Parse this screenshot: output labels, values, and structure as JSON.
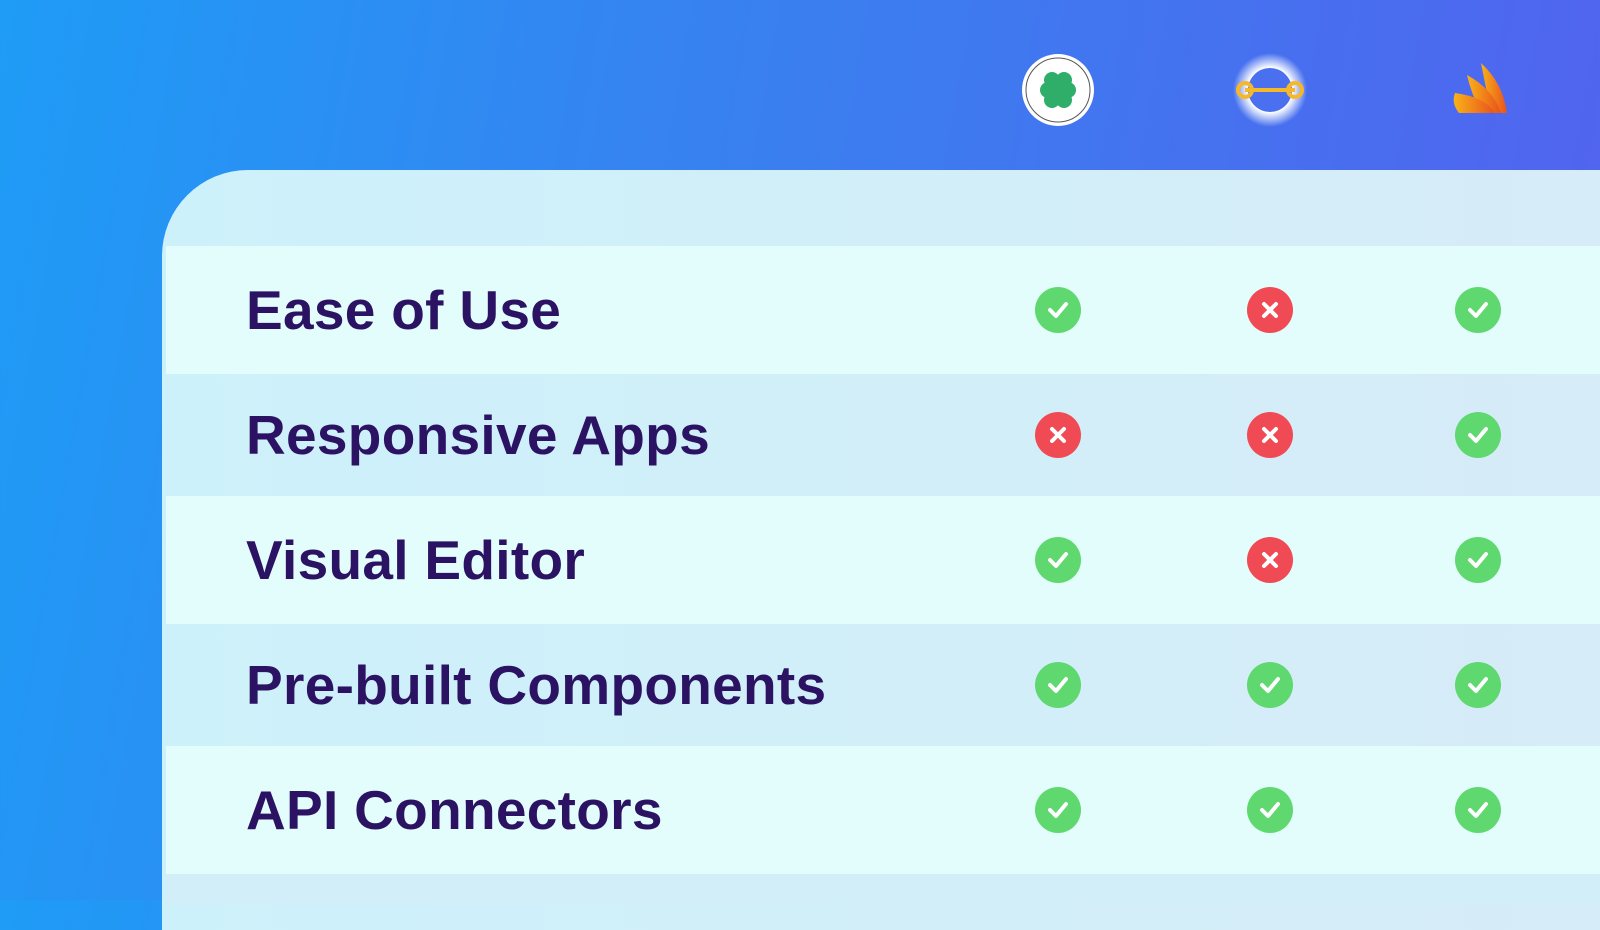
{
  "products": [
    {
      "icon": "clover-logo-icon"
    },
    {
      "icon": "link-ring-logo-icon"
    },
    {
      "icon": "orange-wings-logo-icon"
    }
  ],
  "features": [
    {
      "label": "Ease of Use",
      "values": [
        true,
        false,
        true
      ]
    },
    {
      "label": "Responsive Apps",
      "values": [
        false,
        false,
        true
      ]
    },
    {
      "label": "Visual Editor",
      "values": [
        true,
        false,
        true
      ]
    },
    {
      "label": "Pre-built Components",
      "values": [
        true,
        true,
        true
      ]
    },
    {
      "label": "API Connectors",
      "values": [
        true,
        true,
        true
      ]
    }
  ],
  "colors": {
    "yes": "#5fd86f",
    "no": "#f04b55",
    "text": "#2b1263"
  }
}
